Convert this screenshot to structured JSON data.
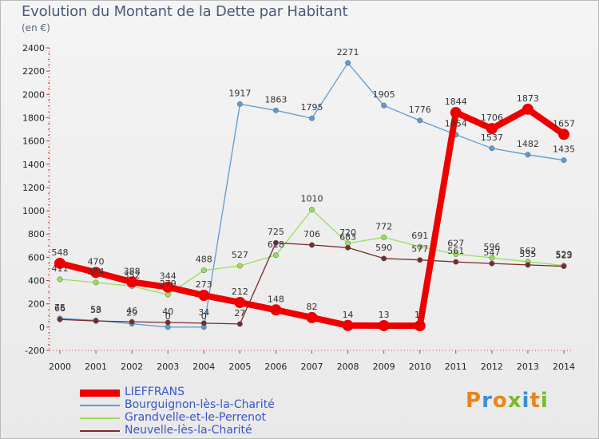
{
  "header": {
    "title": "Evolution du Montant de la Dette par Habitant",
    "unit": "(en €)"
  },
  "logo": {
    "text": "Proxiti"
  },
  "chart_data": {
    "type": "line",
    "title": "Evolution du Montant de la Dette par Habitant",
    "ylabel": "(en €)",
    "xlabel": "",
    "x": [
      "2000",
      "2001",
      "2002",
      "2003",
      "2004",
      "2005",
      "2006",
      "2007",
      "2008",
      "2009",
      "2010",
      "2011",
      "2012",
      "2013",
      "2014"
    ],
    "ylim": [
      -200,
      2400
    ],
    "ytick_step": 200,
    "grid": false,
    "legend_position": "bottom-left",
    "series": [
      {
        "name": "LIEFFRANS",
        "color": "#ee0000",
        "values": [
          548,
          470,
          388,
          344,
          273,
          212,
          148,
          82,
          14,
          13,
          12,
          1844,
          1706,
          1873,
          1657
        ],
        "labels": [
          "548",
          "470",
          "388",
          "344",
          "273",
          "212",
          "148",
          "82",
          "14",
          "13",
          "12",
          "1844",
          "1706",
          "1873",
          "1657"
        ]
      },
      {
        "name": "Bourguignon-lès-la-Charité",
        "color": "#5b9bd5",
        "values": [
          75,
          58,
          29,
          0,
          0,
          1917,
          1863,
          1795,
          2271,
          1905,
          1776,
          1654,
          1537,
          1482,
          1435
        ],
        "labels": [
          "75",
          "58",
          "29",
          "0",
          "0",
          "1917",
          "1863",
          "1795",
          "2271",
          "1905",
          "1776",
          "1654",
          "1537",
          "1482",
          "1435"
        ]
      },
      {
        "name": "Grandvelle-et-le-Perrenot",
        "color": "#9adf5a",
        "values": [
          411,
          384,
          352,
          279,
          488,
          527,
          618,
          1010,
          720,
          772,
          691,
          627,
          596,
          562,
          529
        ],
        "labels": [
          "411",
          "384",
          "352",
          "279",
          "488",
          "527",
          "618",
          "1010",
          "720",
          "772",
          "691",
          "627",
          "596",
          "562",
          "529"
        ]
      },
      {
        "name": "Neuvelle-lès-la-Charité",
        "color": "#7a2a2a",
        "values": [
          66,
          53,
          46,
          40,
          34,
          27,
          725,
          706,
          683,
          590,
          577,
          561,
          547,
          535,
          523
        ],
        "labels": [
          "66",
          "53",
          "46",
          "40",
          "34",
          "27",
          "725",
          "706",
          "683",
          "590",
          "577",
          "561",
          "547",
          "535",
          "523"
        ]
      }
    ]
  }
}
